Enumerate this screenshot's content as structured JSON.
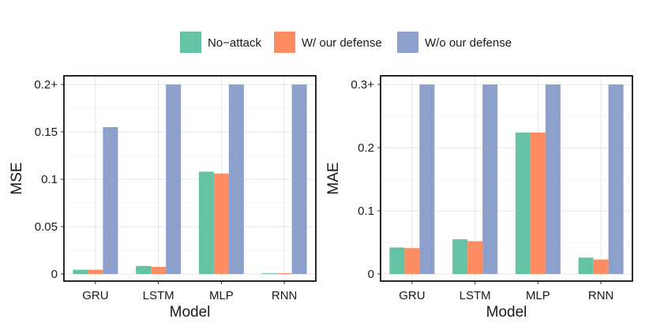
{
  "legend": {
    "entries": [
      {
        "label": "No−attack",
        "color": "#66c2a5"
      },
      {
        "label": "W/ our defense",
        "color": "#fc8d62"
      },
      {
        "label": "W/o our defense",
        "color": "#8da0cb"
      }
    ]
  },
  "chart_data": [
    {
      "type": "bar",
      "xlabel": "Model",
      "ylabel": "MSE",
      "categories": [
        "GRU",
        "LSTM",
        "MLP",
        "RNN"
      ],
      "ylim": [
        0,
        0.2
      ],
      "yticks": [
        0,
        0.05,
        0.1,
        0.15,
        0.2
      ],
      "ytick_labels": [
        "0",
        "0.05",
        "0.1",
        "0.15",
        "0.2+"
      ],
      "grid": true,
      "legend_position": "top",
      "series": [
        {
          "name": "No−attack",
          "color": "#66c2a5",
          "values": [
            0.0045,
            0.0085,
            0.108,
            0.0008
          ]
        },
        {
          "name": "W/ our defense",
          "color": "#fc8d62",
          "values": [
            0.0045,
            0.0075,
            0.106,
            0.0008
          ]
        },
        {
          "name": "W/o our defense",
          "color": "#8da0cb",
          "values": [
            0.155,
            0.2,
            0.2,
            0.2
          ]
        }
      ]
    },
    {
      "type": "bar",
      "xlabel": "Model",
      "ylabel": "MAE",
      "categories": [
        "GRU",
        "LSTM",
        "MLP",
        "RNN"
      ],
      "ylim": [
        0,
        0.3
      ],
      "yticks": [
        0,
        0.1,
        0.2,
        0.3
      ],
      "ytick_labels": [
        "0",
        "0.1",
        "0.2",
        "0.3+"
      ],
      "grid": true,
      "legend_position": "top",
      "series": [
        {
          "name": "No−attack",
          "color": "#66c2a5",
          "values": [
            0.042,
            0.055,
            0.224,
            0.026
          ]
        },
        {
          "name": "W/ our defense",
          "color": "#fc8d62",
          "values": [
            0.041,
            0.052,
            0.224,
            0.023
          ]
        },
        {
          "name": "W/o our defense",
          "color": "#8da0cb",
          "values": [
            0.3,
            0.3,
            0.3,
            0.3
          ]
        }
      ]
    }
  ]
}
